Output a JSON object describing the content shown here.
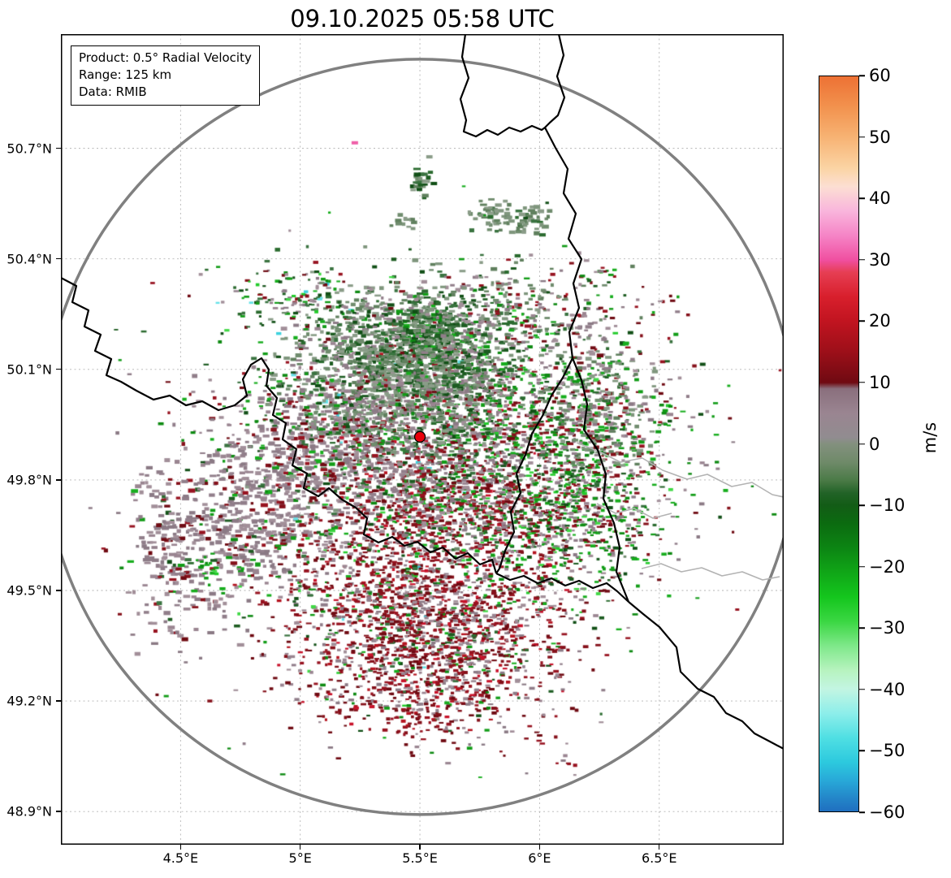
{
  "title": "09.10.2025 05:58 UTC",
  "info_box": {
    "lines": [
      "Product: 0.5° Radial Velocity",
      "Range: 125 km",
      "Data: RMIB"
    ]
  },
  "chart_data": {
    "type": "heatmap",
    "title": "09.10.2025 05:58 UTC",
    "xlabel": "",
    "ylabel": "",
    "xlim": [
      4.0,
      7.02
    ],
    "ylim": [
      48.81,
      51.01
    ],
    "grid": "dashed",
    "x_ticks": [
      {
        "value": 4.5,
        "label": "4.5°E"
      },
      {
        "value": 5.0,
        "label": "5°E"
      },
      {
        "value": 5.5,
        "label": "5.5°E"
      },
      {
        "value": 6.0,
        "label": "6°E"
      },
      {
        "value": 6.5,
        "label": "6.5°E"
      }
    ],
    "y_ticks": [
      {
        "value": 50.7,
        "label": "50.7°N"
      },
      {
        "value": 50.4,
        "label": "50.4°N"
      },
      {
        "value": 50.1,
        "label": "50.1°N"
      },
      {
        "value": 49.8,
        "label": "49.8°N"
      },
      {
        "value": 49.5,
        "label": "49.5°N"
      },
      {
        "value": 49.2,
        "label": "49.2°N"
      },
      {
        "value": 48.9,
        "label": "48.9°N"
      }
    ],
    "product": "0.5° Radial Velocity",
    "range_km": 125,
    "source": "RMIB",
    "radar_site": {
      "lon": 5.5,
      "lat": 49.917,
      "marker_color": "#e8000b"
    },
    "colorbar": {
      "label": "m/s",
      "min": -60,
      "max": 60,
      "ticks": [
        60,
        50,
        40,
        30,
        20,
        10,
        0,
        -10,
        -20,
        -30,
        -40,
        -50,
        -60
      ],
      "stops": [
        {
          "v": 60,
          "c": "#ed7134"
        },
        {
          "v": 55,
          "c": "#f2924e"
        },
        {
          "v": 50,
          "c": "#f7b374"
        },
        {
          "v": 45,
          "c": "#fbd4a4"
        },
        {
          "v": 42,
          "c": "#fcdfd3"
        },
        {
          "v": 38,
          "c": "#f9b5dc"
        },
        {
          "v": 34,
          "c": "#f584c6"
        },
        {
          "v": 30,
          "c": "#f04fa0"
        },
        {
          "v": 28,
          "c": "#e63e53"
        },
        {
          "v": 24,
          "c": "#d81f2c"
        },
        {
          "v": 20,
          "c": "#c11420"
        },
        {
          "v": 15,
          "c": "#9c0f19"
        },
        {
          "v": 10,
          "c": "#6f0a12"
        },
        {
          "v": 9,
          "c": "#8a6f7d"
        },
        {
          "v": 5,
          "c": "#9a8591"
        },
        {
          "v": 1,
          "c": "#918c90"
        },
        {
          "v": 0,
          "c": "#83907e"
        },
        {
          "v": -3,
          "c": "#6f8a69"
        },
        {
          "v": -6,
          "c": "#4a7a46"
        },
        {
          "v": -8,
          "c": "#226327"
        },
        {
          "v": -10,
          "c": "#135c16"
        },
        {
          "v": -13,
          "c": "#0b6b10"
        },
        {
          "v": -17,
          "c": "#0c8513"
        },
        {
          "v": -21,
          "c": "#10a617"
        },
        {
          "v": -25,
          "c": "#14c61d"
        },
        {
          "v": -29,
          "c": "#3bd743"
        },
        {
          "v": -33,
          "c": "#7fe88a"
        },
        {
          "v": -37,
          "c": "#b7f3bf"
        },
        {
          "v": -40,
          "c": "#c3f5e2"
        },
        {
          "v": -44,
          "c": "#8deeea"
        },
        {
          "v": -48,
          "c": "#4fdfe3"
        },
        {
          "v": -52,
          "c": "#2cc9de"
        },
        {
          "v": -55,
          "c": "#28a8d8"
        },
        {
          "v": -58,
          "c": "#2384c8"
        },
        {
          "v": -60,
          "c": "#1f6fc0"
        }
      ]
    },
    "palette": {
      "dkred": [
        "#6f0a12",
        "#85101a",
        "#971320"
      ],
      "red": [
        "#b5131f",
        "#c8122a"
      ],
      "mauve": [
        "#9a8591",
        "#917e8a",
        "#a28f99",
        "#8b7a85"
      ],
      "grygreen": [
        "#708c6e",
        "#7f967d",
        "#60805e",
        "#8a9c88"
      ],
      "dkgreen": [
        "#1d5c21",
        "#2b6b2f",
        "#114f16",
        "#3a7340"
      ],
      "green": [
        "#129c17",
        "#0e8a12",
        "#17ad1d"
      ],
      "brgreen": [
        "#23cb2b",
        "#40d845"
      ],
      "cyan": [
        "#3ed2de",
        "#66e2e8"
      ],
      "pink": [
        "#ef5fa8"
      ]
    },
    "velocity_clusters": [
      {
        "lon": 5.493,
        "lat": 50.067,
        "slon": 0.238,
        "slat": 0.121,
        "n": 1200,
        "gs": 1.25,
        "mix": {
          "grygreen": 45,
          "dkgreen": 25,
          "mauve": 20,
          "green": 5,
          "dkred": 4,
          "cyan": 1
        }
      },
      {
        "lon": 5.561,
        "lat": 50.194,
        "slon": 0.095,
        "slat": 0.049,
        "n": 260,
        "gs": 1.2,
        "mix": {
          "dkgreen": 60,
          "grygreen": 30,
          "green": 10
        }
      },
      {
        "lon": 5.368,
        "lat": 50.15,
        "slon": 0.129,
        "slat": 0.066,
        "n": 300,
        "gs": 1.25,
        "mix": {
          "grygreen": 60,
          "dkgreen": 30,
          "mauve": 10
        }
      },
      {
        "lon": 5.51,
        "lat": 50.613,
        "slon": 0.027,
        "slat": 0.031,
        "n": 30,
        "gs": 1.3,
        "mix": {
          "dkgreen": 50,
          "grygreen": 50
        }
      },
      {
        "lon": 5.788,
        "lat": 50.516,
        "slon": 0.048,
        "slat": 0.022,
        "n": 40,
        "gs": 1.3,
        "mix": {
          "grygreen": 80,
          "dkgreen": 20
        }
      },
      {
        "lon": 5.944,
        "lat": 50.507,
        "slon": 0.061,
        "slat": 0.02,
        "n": 48,
        "gs": 1.3,
        "mix": {
          "grygreen": 85,
          "dkgreen": 15
        }
      },
      {
        "lon": 5.432,
        "lat": 50.501,
        "slon": 0.024,
        "slat": 0.013,
        "n": 12,
        "gs": 1.2,
        "mix": {
          "grygreen": 100
        }
      },
      {
        "lon": 5.001,
        "lat": 50.282,
        "slon": 0.187,
        "slat": 0.049,
        "n": 170,
        "gs": 1.0,
        "mix": {
          "dkgreen": 35,
          "green": 20,
          "mauve": 20,
          "dkred": 15,
          "brgreen": 5,
          "cyan": 5
        }
      },
      {
        "lon": 5.849,
        "lat": 50.265,
        "slon": 0.204,
        "slat": 0.057,
        "n": 220,
        "gs": 1.1,
        "mix": {
          "grygreen": 40,
          "mauve": 30,
          "dkgreen": 15,
          "dkred": 10,
          "green": 5
        }
      },
      {
        "lon": 6.263,
        "lat": 50.362,
        "slon": 0.048,
        "slat": 0.018,
        "n": 14,
        "gs": 1.0,
        "mix": {
          "green": 40,
          "dkred": 30,
          "mauve": 30
        }
      },
      {
        "lon": 6.501,
        "lat": 50.282,
        "slon": 0.041,
        "slat": 0.015,
        "n": 10,
        "gs": 1.0,
        "mix": {
          "green": 30,
          "dkred": 40,
          "mauve": 30
        }
      },
      {
        "lon": 6.172,
        "lat": 50.23,
        "slon": 0.041,
        "slat": 0.011,
        "n": 10,
        "gs": 1.2,
        "mix": {
          "mauve": 100
        }
      },
      {
        "lon": 5.069,
        "lat": 49.868,
        "slon": 0.187,
        "slat": 0.099,
        "n": 420,
        "gs": 1.3,
        "mix": {
          "mauve": 78,
          "dkred": 8,
          "green": 6,
          "dkgreen": 5,
          "grygreen": 3
        }
      },
      {
        "lon": 4.797,
        "lat": 49.674,
        "slon": 0.143,
        "slat": 0.11,
        "n": 380,
        "gs": 1.3,
        "mix": {
          "mauve": 80,
          "dkred": 10,
          "green": 5,
          "dkgreen": 5
        }
      },
      {
        "lon": 4.468,
        "lat": 49.608,
        "slon": 0.102,
        "slat": 0.121,
        "n": 230,
        "gs": 1.3,
        "mix": {
          "mauve": 75,
          "dkred": 15,
          "green": 5,
          "dkgreen": 5
        }
      },
      {
        "lon": 4.611,
        "lat": 49.566,
        "slon": 0.034,
        "slat": 0.018,
        "n": 18,
        "gs": 1.0,
        "mix": {
          "green": 60,
          "brgreen": 40
        }
      },
      {
        "lon": 5.442,
        "lat": 49.586,
        "slon": 0.305,
        "slat": 0.176,
        "n": 1400,
        "gs": 1.0,
        "mix": {
          "dkred": 50,
          "mauve": 25,
          "red": 10,
          "green": 6,
          "dkgreen": 5,
          "brgreen": 3,
          "cyan": 1
        }
      },
      {
        "lon": 5.561,
        "lat": 49.365,
        "slon": 0.238,
        "slat": 0.11,
        "n": 900,
        "gs": 1.0,
        "mix": {
          "dkred": 55,
          "mauve": 28,
          "red": 9,
          "green": 5,
          "dkgreen": 3
        }
      },
      {
        "lon": 5.561,
        "lat": 49.211,
        "slon": 0.238,
        "slat": 0.044,
        "n": 160,
        "gs": 1.0,
        "mix": {
          "dkred": 70,
          "mauve": 15,
          "red": 10,
          "green": 5
        }
      },
      {
        "lon": 5.51,
        "lat": 49.14,
        "slon": 0.075,
        "slat": 0.022,
        "n": 32,
        "gs": 1.0,
        "mix": {
          "dkred": 90,
          "red": 10
        }
      },
      {
        "lon": 6.002,
        "lat": 49.101,
        "slon": 0.027,
        "slat": 0.013,
        "n": 6,
        "gs": 1.0,
        "mix": {
          "dkred": 100
        }
      },
      {
        "lon": 6.121,
        "lat": 49.03,
        "slon": 0.027,
        "slat": 0.013,
        "n": 5,
        "gs": 1.0,
        "mix": {
          "dkred": 70,
          "mauve": 30
        }
      },
      {
        "lon": 5.917,
        "lat": 49.917,
        "slon": 0.255,
        "slat": 0.187,
        "n": 1000,
        "gs": 1.0,
        "mix": {
          "green": 22,
          "dkgreen": 18,
          "mauve": 25,
          "dkred": 22,
          "brgreen": 6,
          "grygreen": 5,
          "red": 2
        }
      },
      {
        "lon": 6.121,
        "lat": 49.718,
        "slon": 0.17,
        "slat": 0.121,
        "n": 550,
        "gs": 1.0,
        "mix": {
          "green": 30,
          "mauve": 27,
          "dkred": 20,
          "dkgreen": 15,
          "brgreen": 8
        }
      },
      {
        "lon": 6.246,
        "lat": 50.0,
        "slon": 0.129,
        "slat": 0.11,
        "n": 330,
        "gs": 1.2,
        "mix": {
          "grygreen": 45,
          "mauve": 20,
          "green": 15,
          "dkred": 12,
          "dkgreen": 8
        }
      },
      {
        "lon": 6.46,
        "lat": 49.956,
        "slon": 0.119,
        "slat": 0.055,
        "n": 40,
        "gs": 1.0,
        "mix": {
          "mauve": 40,
          "dkred": 30,
          "green": 30
        }
      },
      {
        "lon": 6.359,
        "lat": 49.7,
        "slon": 0.081,
        "slat": 0.044,
        "n": 60,
        "gs": 1.0,
        "mix": {
          "green": 50,
          "mauve": 30,
          "dkred": 20
        }
      },
      {
        "lon": 5.578,
        "lat": 49.78,
        "slon": 0.204,
        "slat": 0.077,
        "n": 500,
        "gs": 1.1,
        "mix": {
          "mauve": 50,
          "dkred": 30,
          "green": 8,
          "dkgreen": 7,
          "grygreen": 5
        }
      },
      {
        "lon": 5.266,
        "lat": 49.956,
        "slon": 0.119,
        "slat": 0.062,
        "n": 220,
        "gs": 1.1,
        "mix": {
          "mauve": 45,
          "grygreen": 30,
          "dkgreen": 10,
          "dkred": 10,
          "green": 5
        }
      },
      {
        "lon": 4.933,
        "lat": 50.044,
        "slon": 0.153,
        "slat": 0.055,
        "n": 60,
        "gs": 1.0,
        "mix": {
          "green": 30,
          "dkgreen": 25,
          "mauve": 25,
          "dkred": 20
        }
      },
      {
        "lon": 5.51,
        "lat": 49.494,
        "slon": 0.441,
        "slat": 0.198,
        "n": 300,
        "gs": 1.0,
        "mix": {
          "dkred": 50,
          "mauve": 30,
          "green": 10,
          "dkgreen": 10
        }
      },
      {
        "lon": 5.985,
        "lat": 49.868,
        "slon": 0.373,
        "slat": 0.22,
        "n": 280,
        "gs": 1.0,
        "mix": {
          "green": 30,
          "dkred": 25,
          "mauve": 25,
          "dkgreen": 20
        }
      },
      {
        "lon": 4.764,
        "lat": 49.956,
        "slon": 0.136,
        "slat": 0.066,
        "n": 45,
        "gs": 1.0,
        "mix": {
          "mauve": 50,
          "green": 25,
          "dkred": 25
        }
      },
      {
        "lon": 5.205,
        "lat": 50.177,
        "slon": 0.136,
        "slat": 0.066,
        "n": 110,
        "gs": 1.1,
        "mix": {
          "grygreen": 50,
          "dkgreen": 30,
          "mauve": 20
        }
      },
      {
        "lon": 5.646,
        "lat": 50.067,
        "slon": 0.102,
        "slat": 0.088,
        "n": 240,
        "gs": 1.2,
        "mix": {
          "grygreen": 50,
          "dkgreen": 20,
          "mauve": 30
        }
      },
      {
        "lon": 5.578,
        "lat": 49.736,
        "slon": 0.78,
        "slat": 0.353,
        "n": 170,
        "gs": 0.9,
        "mix": {
          "dkred": 30,
          "green": 25,
          "mauve": 25,
          "dkgreen": 20
        }
      }
    ],
    "special_points": [
      {
        "lon": 5.228,
        "lat": 50.715,
        "color": "#ef5fa8",
        "w": 8,
        "h": 4
      }
    ]
  }
}
